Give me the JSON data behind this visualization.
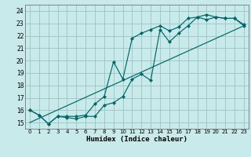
{
  "xlabel": "Humidex (Indice chaleur)",
  "bg_color": "#c8eaea",
  "grid_color": "#a0c8c8",
  "line_color": "#006868",
  "xlim": [
    -0.5,
    23.5
  ],
  "ylim": [
    14.5,
    24.5
  ],
  "xticks": [
    0,
    1,
    2,
    3,
    4,
    5,
    6,
    7,
    8,
    9,
    10,
    11,
    12,
    13,
    14,
    15,
    16,
    17,
    18,
    19,
    20,
    21,
    22,
    23
  ],
  "yticks": [
    15,
    16,
    17,
    18,
    19,
    20,
    21,
    22,
    23,
    24
  ],
  "line1_x": [
    0,
    1,
    2,
    3,
    4,
    5,
    6,
    7,
    8,
    9,
    10,
    11,
    12,
    13,
    14,
    15,
    16,
    17,
    18,
    19,
    20,
    21,
    22,
    23
  ],
  "line1_y": [
    16.0,
    15.6,
    14.9,
    15.5,
    15.4,
    15.3,
    15.5,
    15.5,
    16.4,
    16.6,
    17.1,
    18.5,
    18.9,
    18.4,
    22.5,
    21.5,
    22.2,
    22.8,
    23.5,
    23.3,
    23.5,
    23.4,
    23.4,
    22.9
  ],
  "line2_x": [
    0,
    1,
    2,
    3,
    4,
    5,
    6,
    7,
    8,
    9,
    10,
    11,
    12,
    13,
    14,
    15,
    16,
    17,
    18,
    19,
    20,
    21,
    22,
    23
  ],
  "line2_y": [
    16.0,
    15.6,
    14.9,
    15.5,
    15.5,
    15.5,
    15.6,
    16.5,
    17.1,
    19.9,
    18.5,
    21.8,
    22.2,
    22.5,
    22.8,
    22.4,
    22.7,
    23.4,
    23.5,
    23.7,
    23.5,
    23.4,
    23.4,
    22.8
  ],
  "line3_x": [
    0,
    23
  ],
  "line3_y": [
    15.0,
    22.8
  ]
}
